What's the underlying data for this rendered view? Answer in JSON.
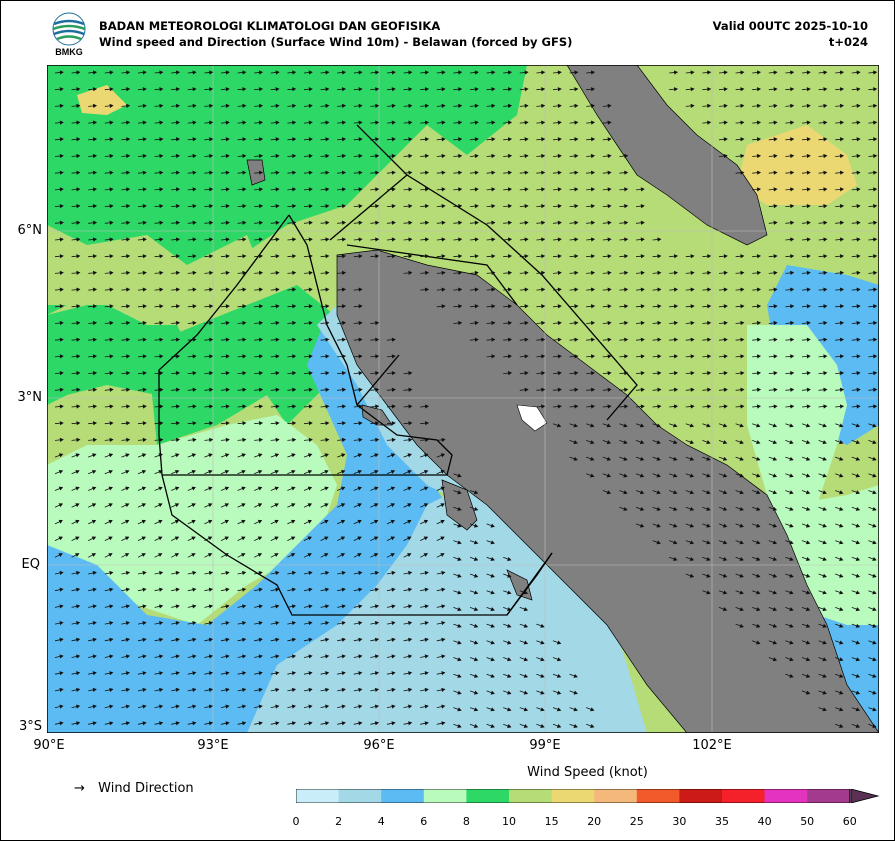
{
  "header": {
    "logo_text": "BMKG",
    "agency": "BADAN METEOROLOGI KLIMATOLOGI DAN GEOFISIKA",
    "product": "Wind speed and Direction (Surface Wind 10m) - Belawan (forced by GFS)",
    "valid": "Valid 00UTC 2025-10-10",
    "timestep": "t+024"
  },
  "map": {
    "lat_labels": [
      "6°N",
      "3°N",
      "EQ",
      "3°S"
    ],
    "lon_labels": [
      "90°E",
      "93°E",
      "96°E",
      "99°E",
      "102°E"
    ],
    "land_color": "#808080",
    "grid": true
  },
  "legend": {
    "wind_direction_arrow": "→",
    "wind_direction_label": "Wind Direction",
    "colorbar_title": "Wind Speed (knot)",
    "levels": [
      "0",
      "2",
      "4",
      "6",
      "8",
      "10",
      "15",
      "20",
      "25",
      "30",
      "35",
      "40",
      "50",
      "60"
    ],
    "colors": [
      "#c9eefa",
      "#a3d8e6",
      "#5bbbf2",
      "#b9fbbc",
      "#2ed866",
      "#b6dc78",
      "#ecd873",
      "#f4b87a",
      "#f25a2b",
      "#cc1b16",
      "#f4212b",
      "#e334bf",
      "#a33a8d"
    ],
    "extend_color": "#5b3153"
  }
}
